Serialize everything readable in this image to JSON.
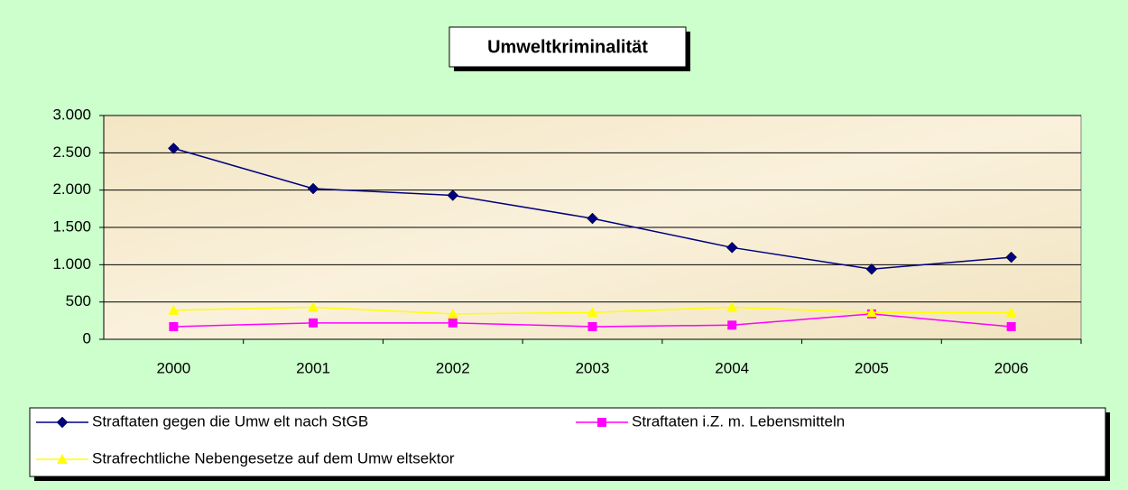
{
  "chart_data": {
    "type": "line",
    "title": "Umweltkriminalität",
    "categories": [
      "2000",
      "2001",
      "2002",
      "2003",
      "2004",
      "2005",
      "2006"
    ],
    "series": [
      {
        "name": "Straftaten gegen die Umw elt nach StGB",
        "color": "#000080",
        "marker": "diamond",
        "values": [
          2560,
          2020,
          1930,
          1620,
          1230,
          940,
          1100
        ]
      },
      {
        "name": "Straftaten i.Z. m. Lebensmitteln",
        "color": "#ff00ff",
        "marker": "square",
        "values": [
          170,
          220,
          220,
          170,
          190,
          340,
          170
        ]
      },
      {
        "name": "Strafrechtliche Nebengesetze auf dem Umw eltsektor",
        "color": "#ffff00",
        "marker": "triangle",
        "values": [
          390,
          430,
          340,
          360,
          430,
          360,
          360
        ]
      }
    ],
    "ylim": [
      0,
      3000
    ],
    "yticks": [
      0,
      500,
      {
        "value": 1000,
        "label": "1.000"
      },
      {
        "value": 1500,
        "label": "1.500"
      },
      {
        "value": 2000,
        "label": "2.000"
      },
      {
        "value": 2500,
        "label": "2.500"
      },
      {
        "value": 3000,
        "label": "3.000"
      }
    ],
    "grid": true
  }
}
